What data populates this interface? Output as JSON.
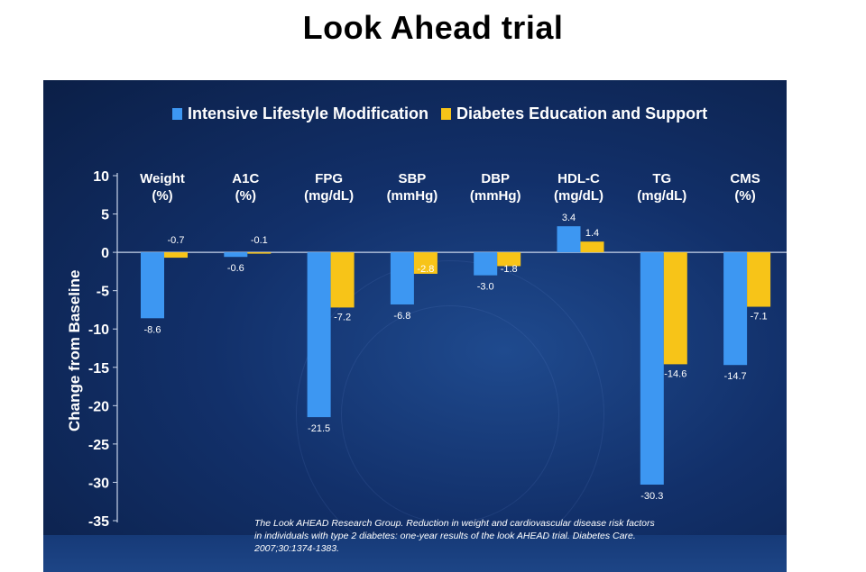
{
  "slide_title": "Look Ahead trial",
  "citation": "The Look AHEAD Research Group. Reduction in weight and cardiovascular disease risk factors in individuals with type 2 diabetes: one-year results of the look AHEAD trial. Diabetes Care. 2007;30:1374-1383.",
  "chart_data": {
    "type": "bar",
    "title": "",
    "xlabel": "",
    "ylabel": "Change from Baseline",
    "ylim": [
      -35,
      10
    ],
    "yticks": [
      10,
      5,
      0,
      -5,
      -10,
      -15,
      -20,
      -25,
      -30,
      -35
    ],
    "categories": [
      [
        "Weight",
        "(%)"
      ],
      [
        "A1C",
        "(%)"
      ],
      [
        "FPG",
        "(mg/dL)"
      ],
      [
        "SBP",
        "(mmHg)"
      ],
      [
        "DBP",
        "(mmHg)"
      ],
      [
        "HDL-C",
        "(mg/dL)"
      ],
      [
        "TG",
        "(mg/dL)"
      ],
      [
        "CMS",
        "(%)"
      ]
    ],
    "series": [
      {
        "name": "Intensive Lifestyle Modification",
        "color": "#3d97f2",
        "values": [
          -8.6,
          -0.6,
          -21.5,
          -6.8,
          -3.0,
          3.4,
          -30.3,
          -14.7
        ],
        "labels": [
          "-8.6",
          "-0.6",
          "-21.5",
          "-6.8",
          "-3.0",
          "3.4",
          "-30.3",
          "-14.7"
        ]
      },
      {
        "name": "Diabetes Education and Support",
        "color": "#f7c418",
        "values": [
          -0.7,
          -0.1,
          -7.2,
          -2.8,
          -1.8,
          1.4,
          -14.6,
          -7.1
        ],
        "labels": [
          "-0.7",
          "-0.1",
          "-7.2",
          "-2.8",
          "-1.8",
          "1.4",
          "-14.6",
          "-7.1"
        ]
      }
    ],
    "legend_position": "top",
    "grid": false
  }
}
